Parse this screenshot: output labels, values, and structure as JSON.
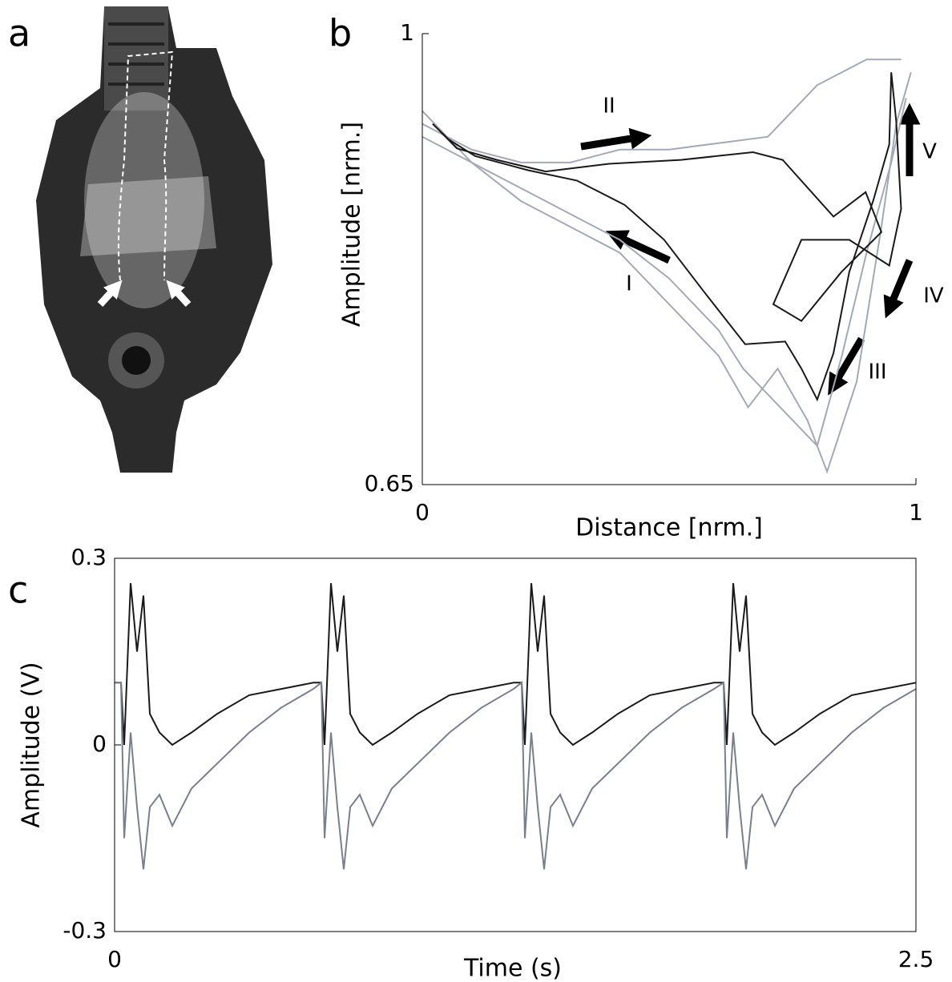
{
  "panel_labels": [
    "a",
    "b",
    "c"
  ],
  "chart_data": [
    {
      "type": "line",
      "xlabel": "Distance [nrm.]",
      "ylabel": "Amplitude [nrm.]",
      "xlim": [
        0,
        1
      ],
      "ylim": [
        0.65,
        1
      ],
      "xticks": [
        0,
        1
      ],
      "yticks": [
        0.65,
        1
      ],
      "annotations": [
        "I",
        "II",
        "III",
        "IV",
        "V"
      ],
      "series": [
        {
          "color": "#a4a9b6",
          "x": [
            0,
            0.05,
            0.1,
            0.2,
            0.3,
            0.4,
            0.5,
            0.6,
            0.7,
            0.75,
            0.8,
            0.85,
            0.9,
            0.95,
            0.97
          ],
          "values": [
            0.93,
            0.92,
            0.91,
            0.9,
            0.9,
            0.91,
            0.91,
            0.915,
            0.92,
            0.94,
            0.96,
            0.97,
            0.98,
            0.98,
            0.98
          ]
        },
        {
          "color": "#a4a9b6",
          "x": [
            0,
            0.05,
            0.1,
            0.2,
            0.3,
            0.4,
            0.5,
            0.6,
            0.65,
            0.7,
            0.75,
            0.8,
            0.85,
            0.9,
            0.95,
            0.98
          ],
          "values": [
            0.94,
            0.92,
            0.9,
            0.88,
            0.86,
            0.84,
            0.81,
            0.77,
            0.74,
            0.72,
            0.7,
            0.68,
            0.75,
            0.83,
            0.9,
            0.95
          ]
        },
        {
          "color": "#a4a9b6",
          "x": [
            0,
            0.1,
            0.2,
            0.3,
            0.4,
            0.5,
            0.6,
            0.66,
            0.72,
            0.78,
            0.82,
            0.88,
            0.93,
            0.96,
            0.99
          ],
          "values": [
            0.92,
            0.9,
            0.87,
            0.85,
            0.83,
            0.79,
            0.75,
            0.71,
            0.74,
            0.7,
            0.66,
            0.73,
            0.85,
            0.93,
            0.97
          ]
        },
        {
          "color": "#1a1a1a",
          "x": [
            0.021,
            0.053,
            0.107,
            0.214,
            0.313,
            0.41,
            0.49,
            0.57,
            0.654,
            0.735,
            0.768,
            0.8,
            0.833,
            0.865,
            0.914,
            0.946,
            0.95,
            0.96,
            0.97,
            0.946,
            0.865,
            0.768,
            0.711,
            0.768,
            0.849,
            0.93,
            0.898,
            0.833,
            0.73,
            0.67,
            0.524,
            0.378,
            0.25,
            0.151,
            0.07,
            0.029
          ],
          "values": [
            0.93,
            0.918,
            0.905,
            0.894,
            0.886,
            0.867,
            0.84,
            0.8,
            0.759,
            0.761,
            0.74,
            0.716,
            0.752,
            0.815,
            0.871,
            0.914,
            0.97,
            0.932,
            0.864,
            0.82,
            0.84,
            0.84,
            0.79,
            0.777,
            0.815,
            0.846,
            0.877,
            0.858,
            0.902,
            0.908,
            0.902,
            0.899,
            0.893,
            0.902,
            0.911,
            0.927
          ]
        }
      ]
    },
    {
      "type": "line",
      "xlabel": "Time (s)",
      "ylabel": "Amplitude (V)",
      "xlim": [
        0,
        2.5
      ],
      "ylim": [
        -0.3,
        0.3
      ],
      "xticks": [
        0,
        2.5
      ],
      "yticks": [
        -0.3,
        0,
        0.3
      ],
      "x": [
        0,
        0.02,
        0.03,
        0.05,
        0.07,
        0.09,
        0.11,
        0.14,
        0.18,
        0.24,
        0.32,
        0.42,
        0.52,
        0.62,
        0.645,
        0.655,
        0.675,
        0.695,
        0.715,
        0.735,
        0.765,
        0.805,
        0.865,
        0.945,
        1.045,
        1.145,
        1.245,
        1.27,
        1.28,
        1.3,
        1.32,
        1.34,
        1.36,
        1.39,
        1.43,
        1.49,
        1.57,
        1.67,
        1.77,
        1.87,
        1.9,
        1.91,
        1.93,
        1.95,
        1.97,
        1.99,
        2.02,
        2.06,
        2.12,
        2.2,
        2.3,
        2.4,
        2.5
      ],
      "series": [
        {
          "color": "#1a1a1a",
          "values": [
            0.1,
            0.1,
            0.0,
            0.26,
            0.15,
            0.24,
            0.05,
            0.02,
            0.0,
            0.02,
            0.05,
            0.08,
            0.09,
            0.1,
            0.1,
            0.0,
            0.26,
            0.15,
            0.24,
            0.05,
            0.02,
            0.0,
            0.02,
            0.05,
            0.08,
            0.09,
            0.1,
            0.1,
            0.0,
            0.26,
            0.15,
            0.24,
            0.05,
            0.02,
            0.0,
            0.02,
            0.05,
            0.08,
            0.09,
            0.1,
            0.1,
            0.0,
            0.26,
            0.15,
            0.24,
            0.05,
            0.02,
            0.0,
            0.02,
            0.05,
            0.08,
            0.09,
            0.1
          ]
        },
        {
          "color": "#7a7f8e",
          "values": [
            0.1,
            0.1,
            -0.15,
            0.02,
            -0.1,
            -0.2,
            -0.1,
            -0.08,
            -0.13,
            -0.07,
            -0.03,
            0.02,
            0.06,
            0.09,
            0.1,
            -0.15,
            0.02,
            -0.1,
            -0.2,
            -0.1,
            -0.08,
            -0.13,
            -0.07,
            -0.03,
            0.02,
            0.06,
            0.09,
            0.1,
            -0.15,
            0.02,
            -0.1,
            -0.2,
            -0.1,
            -0.08,
            -0.13,
            -0.07,
            -0.03,
            0.02,
            0.06,
            0.09,
            0.1,
            -0.15,
            0.02,
            -0.1,
            -0.2,
            -0.1,
            -0.08,
            -0.13,
            -0.07,
            -0.03,
            0.02,
            0.06,
            0.09
          ]
        }
      ]
    }
  ]
}
